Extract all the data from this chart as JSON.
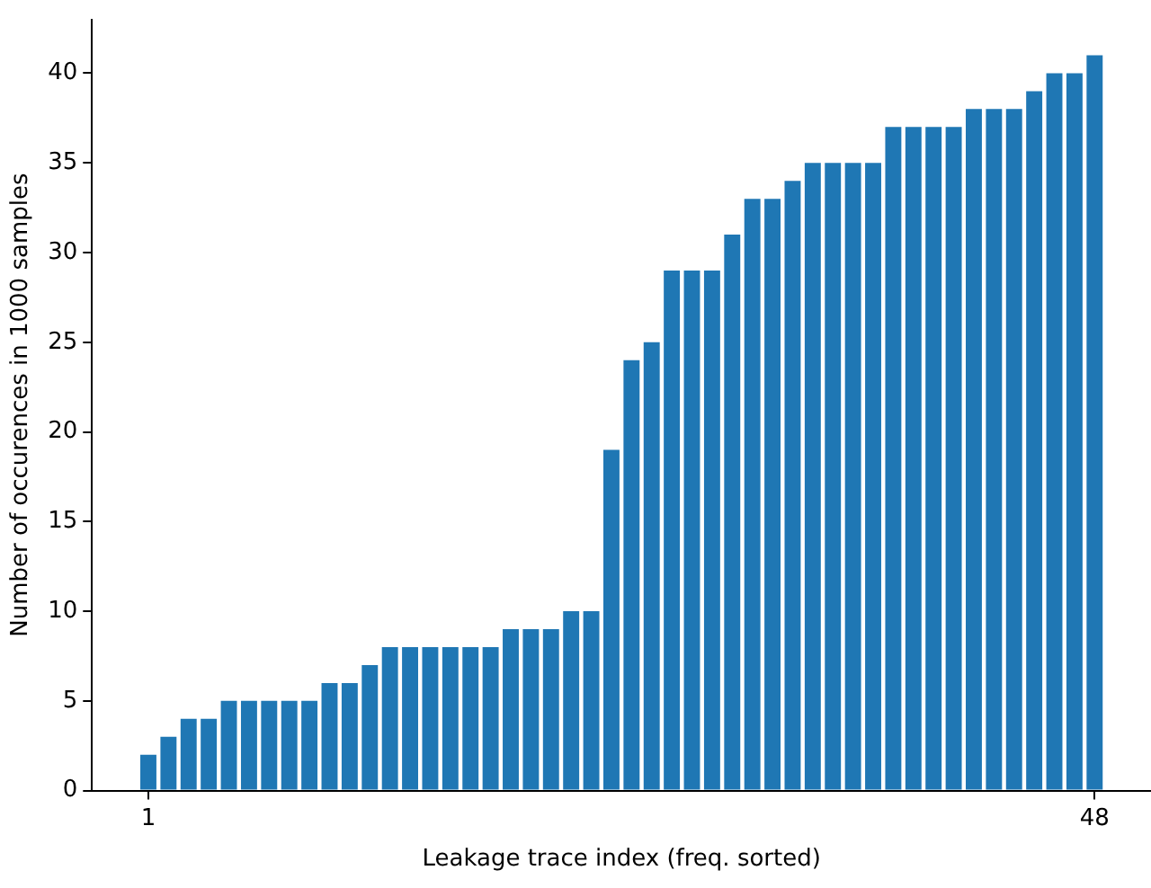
{
  "chart_data": {
    "type": "bar",
    "xlabel": "Leakage trace index (freq. sorted)",
    "ylabel": "Number of occurences in 1000 samples",
    "x": [
      1,
      2,
      3,
      4,
      5,
      6,
      7,
      8,
      9,
      10,
      11,
      12,
      13,
      14,
      15,
      16,
      17,
      18,
      19,
      20,
      21,
      22,
      23,
      24,
      25,
      26,
      27,
      28,
      29,
      30,
      31,
      32,
      33,
      34,
      35,
      36,
      37,
      38,
      39,
      40,
      41,
      42,
      43,
      44,
      45,
      46,
      47,
      48
    ],
    "values": [
      2,
      3,
      4,
      4,
      5,
      5,
      5,
      5,
      5,
      6,
      6,
      7,
      8,
      8,
      8,
      8,
      8,
      8,
      9,
      9,
      9,
      10,
      10,
      19,
      24,
      25,
      29,
      29,
      29,
      31,
      33,
      33,
      34,
      35,
      35,
      35,
      35,
      37,
      37,
      37,
      37,
      38,
      38,
      38,
      39,
      40,
      40,
      41
    ],
    "color": "#1f77b4",
    "xlim": [
      -1.8,
      50.8
    ],
    "xticks": [
      1,
      48
    ],
    "ylim": [
      0,
      43
    ],
    "yticks": [
      0,
      5,
      10,
      15,
      20,
      25,
      30,
      35,
      40
    ],
    "grid": false,
    "legend": false
  }
}
